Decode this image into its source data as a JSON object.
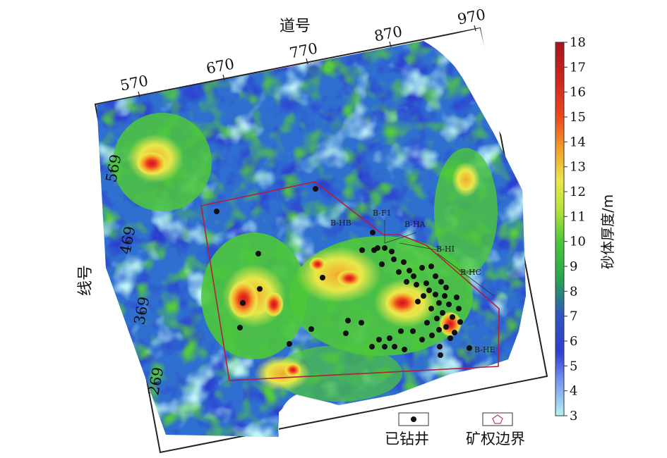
{
  "map": {
    "trace_axis_title": "道号",
    "line_axis_title": "线号",
    "trace_ticks": [
      "570",
      "670",
      "770",
      "870",
      "970"
    ],
    "line_ticks": [
      "569",
      "469",
      "369",
      "269"
    ]
  },
  "wells": {
    "labels": [
      "B-HB",
      "B-F1",
      "B-HA",
      "B-HI",
      "B-HC",
      "B-HE"
    ]
  },
  "colorbar": {
    "title": "砂体厚度/m",
    "min": 3,
    "max": 18,
    "ticks": [
      "18",
      "17",
      "16",
      "15",
      "14",
      "13",
      "12",
      "11",
      "10",
      "9",
      "8",
      "7",
      "6",
      "5",
      "4",
      "3"
    ],
    "colors": [
      "#b5f2f2",
      "#2f3fcf",
      "#26a84a",
      "#4ec93a",
      "#e8e84a",
      "#f2a22e",
      "#e8321e",
      "#a8141e"
    ]
  },
  "legend": {
    "drilled_well": "已钻井",
    "boundary": "矿权边界"
  }
}
